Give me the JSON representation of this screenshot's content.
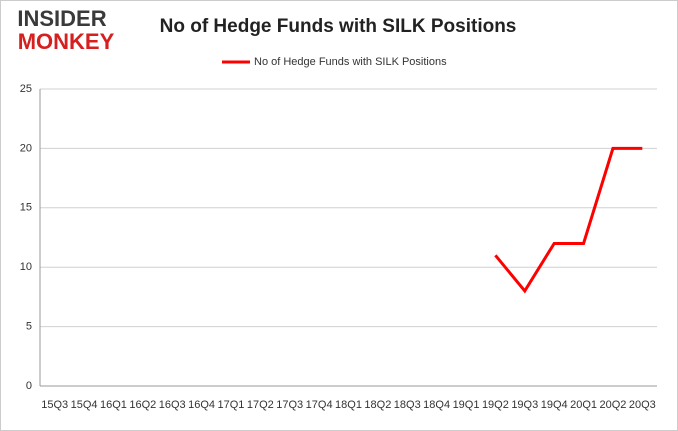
{
  "logo": {
    "line1": "INSIDER",
    "line2": "MONKEY"
  },
  "chart_data": {
    "type": "line",
    "title": "No of Hedge Funds with SILK Positions",
    "categories": [
      "15Q3",
      "15Q4",
      "16Q1",
      "16Q2",
      "16Q3",
      "16Q4",
      "17Q1",
      "17Q2",
      "17Q3",
      "17Q4",
      "18Q1",
      "18Q2",
      "18Q3",
      "18Q4",
      "19Q1",
      "19Q2",
      "19Q3",
      "19Q4",
      "20Q1",
      "20Q2",
      "20Q3"
    ],
    "series": [
      {
        "name": "No of Hedge Funds with SILK Positions",
        "color": "#ff0000",
        "values": [
          null,
          null,
          null,
          null,
          null,
          null,
          null,
          null,
          null,
          null,
          null,
          null,
          null,
          null,
          null,
          11,
          8,
          12,
          12,
          20,
          20
        ]
      }
    ],
    "ylim": [
      0,
      25
    ],
    "yticks": [
      0,
      5,
      10,
      15,
      20,
      25
    ],
    "grid": true,
    "legend": "top"
  }
}
